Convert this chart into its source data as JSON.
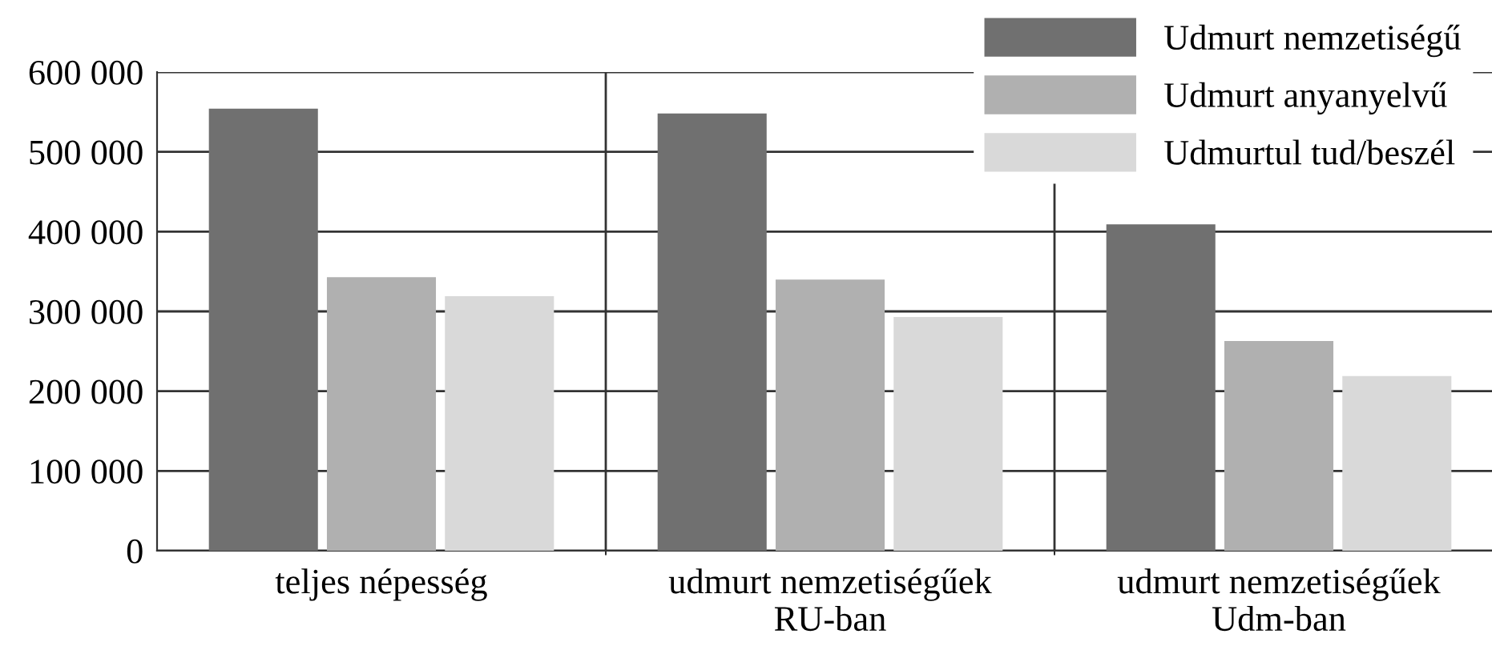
{
  "chart_data": {
    "type": "bar",
    "categories": [
      "teljes népesség",
      "udmurt nemzetiségűek\nRU-ban",
      "udmurt nemzetiségűek\nUdm-ban"
    ],
    "series": [
      {
        "name": "Udmurt nemzetiségű",
        "color": "#707070",
        "values": [
          554000,
          548000,
          409000
        ]
      },
      {
        "name": "Udmurt anyanyelvű",
        "color": "#b0b0b0",
        "values": [
          343000,
          340000,
          263000
        ]
      },
      {
        "name": "Udmurtul tud/beszél",
        "color": "#d9d9d9",
        "values": [
          319000,
          293000,
          219000
        ]
      }
    ],
    "ylim": [
      0,
      600000
    ],
    "yticks": [
      0,
      {
        "value": 100000,
        "label": "100 000"
      },
      {
        "value": 200000,
        "label": "200 000"
      },
      {
        "value": 300000,
        "label": "300 000"
      },
      {
        "value": 400000,
        "label": "400 000"
      },
      {
        "value": 500000,
        "label": "500 000"
      },
      {
        "value": 600000,
        "label": "600 000"
      }
    ],
    "grid": true,
    "legend": "top right"
  }
}
